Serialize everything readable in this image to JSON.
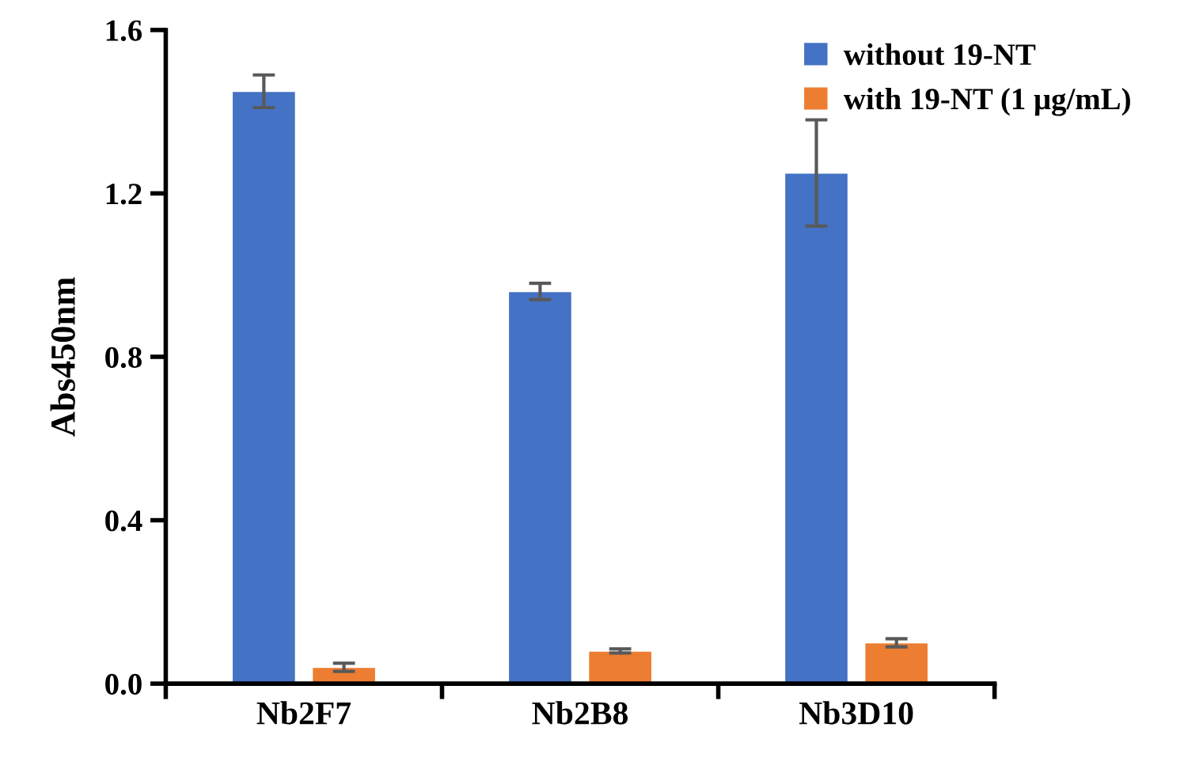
{
  "chart_data": {
    "type": "bar",
    "ylabel": "Abs450nm",
    "categories": [
      "Nb2F7",
      "Nb2B8",
      "Nb3D10"
    ],
    "series": [
      {
        "name": "without 19-NT",
        "color": "#4472c4",
        "values": [
          1.45,
          0.96,
          1.25
        ],
        "errors": [
          0.04,
          0.02,
          0.13
        ]
      },
      {
        "name": "with 19-NT (1 μg/mL)",
        "color": "#ed7d31",
        "values": [
          0.04,
          0.08,
          0.1
        ],
        "errors": [
          0.01,
          0.005,
          0.01
        ]
      }
    ],
    "ylim": [
      0,
      1.6
    ],
    "yticks": [
      {
        "value": 0,
        "label": "0.0"
      },
      0.4,
      0.8,
      1.2,
      1.6
    ],
    "grid": false,
    "legend": "top right"
  }
}
